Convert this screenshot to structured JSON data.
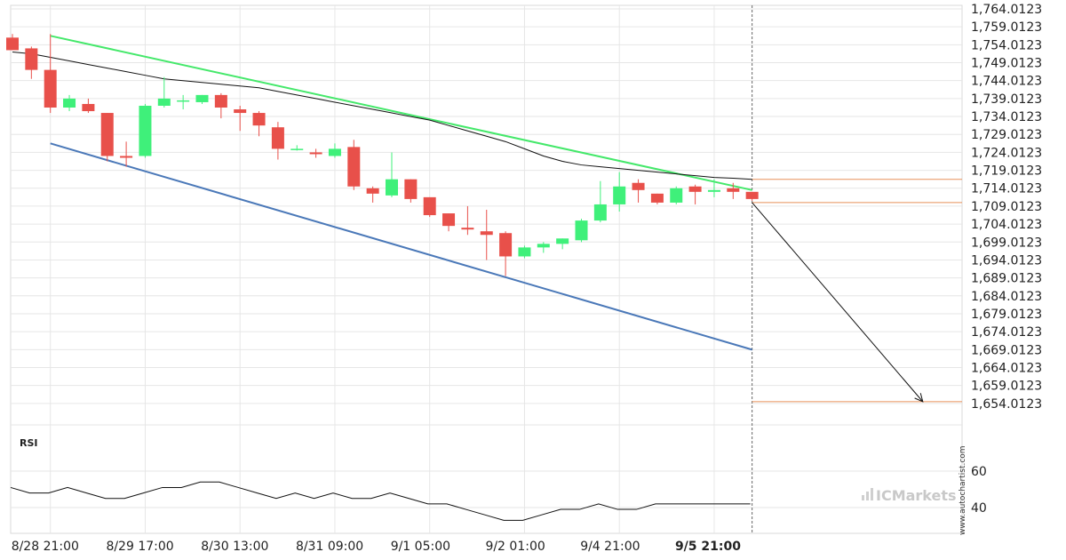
{
  "chart_data": {
    "type": "candlestick",
    "price_ticks": [
      "1,764.0123",
      "1,759.0123",
      "1,754.0123",
      "1,749.0123",
      "1,744.0123",
      "1,739.0123",
      "1,734.0123",
      "1,729.0123",
      "1,724.0123",
      "1,719.0123",
      "1,714.0123",
      "1,709.0123",
      "1,704.0123",
      "1,699.0123",
      "1,694.0123",
      "1,689.0123",
      "1,684.0123",
      "1,679.0123",
      "1,674.0123",
      "1,669.0123",
      "1,664.0123",
      "1,659.0123",
      "1,654.0123"
    ],
    "ylim": [
      1651,
      1765
    ],
    "x_ticks": [
      {
        "label": "8/28 21:00",
        "index": 2
      },
      {
        "label": "8/29 17:00",
        "index": 7
      },
      {
        "label": "8/30 13:00",
        "index": 12
      },
      {
        "label": "8/31 09:00",
        "index": 17
      },
      {
        "label": "9/1 05:00",
        "index": 22
      },
      {
        "label": "9/2 01:00",
        "index": 27
      },
      {
        "label": "9/4 21:00",
        "index": 32
      },
      {
        "label": "9/5 21:00",
        "index": 37,
        "bold": true
      }
    ],
    "candles": [
      {
        "o": 1756.0,
        "h": 1757.0,
        "l": 1752.5,
        "c": 1752.5
      },
      {
        "o": 1753.0,
        "h": 1753.5,
        "l": 1744.5,
        "c": 1747.0
      },
      {
        "o": 1747.0,
        "h": 1757.0,
        "l": 1735.0,
        "c": 1736.5
      },
      {
        "o": 1736.5,
        "h": 1740.0,
        "l": 1735.5,
        "c": 1739.0
      },
      {
        "o": 1737.5,
        "h": 1739.0,
        "l": 1735.0,
        "c": 1735.5
      },
      {
        "o": 1735.0,
        "h": 1735.0,
        "l": 1721.5,
        "c": 1723.0
      },
      {
        "o": 1723.0,
        "h": 1727.0,
        "l": 1720.0,
        "c": 1722.5
      },
      {
        "o": 1723.0,
        "h": 1737.5,
        "l": 1722.5,
        "c": 1737.0
      },
      {
        "o": 1737.0,
        "h": 1745.0,
        "l": 1736.5,
        "c": 1739.0
      },
      {
        "o": 1738.5,
        "h": 1740.0,
        "l": 1736.0,
        "c": 1738.5
      },
      {
        "o": 1738.0,
        "h": 1740.0,
        "l": 1737.5,
        "c": 1740.0
      },
      {
        "o": 1740.0,
        "h": 1740.5,
        "l": 1733.5,
        "c": 1736.5
      },
      {
        "o": 1736.0,
        "h": 1737.0,
        "l": 1730.0,
        "c": 1735.0
      },
      {
        "o": 1735.0,
        "h": 1735.5,
        "l": 1728.5,
        "c": 1731.5
      },
      {
        "o": 1731.0,
        "h": 1732.5,
        "l": 1722.0,
        "c": 1725.0
      },
      {
        "o": 1725.0,
        "h": 1726.0,
        "l": 1724.5,
        "c": 1725.0
      },
      {
        "o": 1724.0,
        "h": 1725.0,
        "l": 1722.5,
        "c": 1723.5
      },
      {
        "o": 1723.0,
        "h": 1726.5,
        "l": 1722.5,
        "c": 1725.0
      },
      {
        "o": 1725.5,
        "h": 1727.5,
        "l": 1713.5,
        "c": 1714.5
      },
      {
        "o": 1714.0,
        "h": 1714.5,
        "l": 1710.0,
        "c": 1712.5
      },
      {
        "o": 1712.0,
        "h": 1724.0,
        "l": 1711.5,
        "c": 1716.5
      },
      {
        "o": 1716.5,
        "h": 1716.5,
        "l": 1710.0,
        "c": 1711.0
      },
      {
        "o": 1711.5,
        "h": 1711.5,
        "l": 1706.0,
        "c": 1706.5
      },
      {
        "o": 1707.0,
        "h": 1707.0,
        "l": 1702.0,
        "c": 1703.5
      },
      {
        "o": 1703.0,
        "h": 1709.0,
        "l": 1701.0,
        "c": 1702.5
      },
      {
        "o": 1702.0,
        "h": 1708.0,
        "l": 1694.0,
        "c": 1701.0
      },
      {
        "o": 1701.5,
        "h": 1702.0,
        "l": 1689.5,
        "c": 1695.0
      },
      {
        "o": 1695.0,
        "h": 1698.0,
        "l": 1694.5,
        "c": 1697.5
      },
      {
        "o": 1697.5,
        "h": 1699.0,
        "l": 1696.0,
        "c": 1698.5
      },
      {
        "o": 1698.5,
        "h": 1700.0,
        "l": 1697.0,
        "c": 1700.0
      },
      {
        "o": 1699.5,
        "h": 1705.5,
        "l": 1699.0,
        "c": 1705.0
      },
      {
        "o": 1705.0,
        "h": 1716.0,
        "l": 1704.5,
        "c": 1709.5
      },
      {
        "o": 1709.5,
        "h": 1718.5,
        "l": 1707.5,
        "c": 1714.5
      },
      {
        "o": 1715.5,
        "h": 1716.5,
        "l": 1710.0,
        "c": 1713.5
      },
      {
        "o": 1712.5,
        "h": 1712.5,
        "l": 1709.5,
        "c": 1710.0
      },
      {
        "o": 1710.0,
        "h": 1714.5,
        "l": 1709.5,
        "c": 1714.0
      },
      {
        "o": 1714.5,
        "h": 1715.0,
        "l": 1709.5,
        "c": 1713.0
      },
      {
        "o": 1713.0,
        "h": 1716.5,
        "l": 1711.5,
        "c": 1713.5
      },
      {
        "o": 1714.0,
        "h": 1715.5,
        "l": 1711.0,
        "c": 1713.0
      },
      {
        "o": 1713.0,
        "h": 1713.0,
        "l": 1710.5,
        "c": 1711.0
      }
    ],
    "moving_average": [
      1752.0,
      1751.5,
      1750.5,
      1749.5,
      1748.5,
      1747.5,
      1746.5,
      1745.5,
      1744.5,
      1744.0,
      1743.5,
      1743.0,
      1742.5,
      1742.0,
      1741.0,
      1740.0,
      1739.0,
      1738.0,
      1737.0,
      1736.0,
      1735.0,
      1734.0,
      1733.0,
      1731.5,
      1730.0,
      1728.5,
      1727.0,
      1725.0,
      1723.0,
      1721.5,
      1720.5,
      1720.0,
      1719.5,
      1719.0,
      1718.5,
      1718.0,
      1717.5,
      1717.0,
      1716.8,
      1716.5
    ],
    "resistance_line": {
      "start": {
        "index": 2,
        "price": 1756.5
      },
      "end": {
        "index": 39,
        "price": 1713.5
      }
    },
    "support_line": {
      "start": {
        "index": 2,
        "price": 1726.5
      },
      "end": {
        "index": 39,
        "price": 1669.0
      }
    },
    "forecast_levels": [
      1716.5,
      1710.0,
      1654.5
    ],
    "forecast_arrow": {
      "from": {
        "index": 39,
        "price": 1710.0
      },
      "to": {
        "index": 48,
        "price": 1654.5
      }
    },
    "rsi": {
      "label": "RSI",
      "ticks": [
        "60",
        "40"
      ],
      "values": [
        51,
        48,
        48,
        51,
        48,
        45,
        45,
        48,
        51,
        51,
        54,
        54,
        51,
        48,
        45,
        48,
        45,
        48,
        45,
        45,
        48,
        45,
        42,
        42,
        39,
        36,
        33,
        33,
        36,
        39,
        39,
        42,
        39,
        39,
        42,
        42,
        42,
        42,
        42,
        42
      ]
    },
    "colors": {
      "bull": "#3ff07a",
      "bear": "#e8504a",
      "resistance": "#44e86a",
      "support": "#4a78b8",
      "level": "#e8905a",
      "grid": "#e6e6e6"
    }
  },
  "branding": {
    "logo_text": "ICMarkets",
    "watermark_text": "www.autochartist.com"
  }
}
